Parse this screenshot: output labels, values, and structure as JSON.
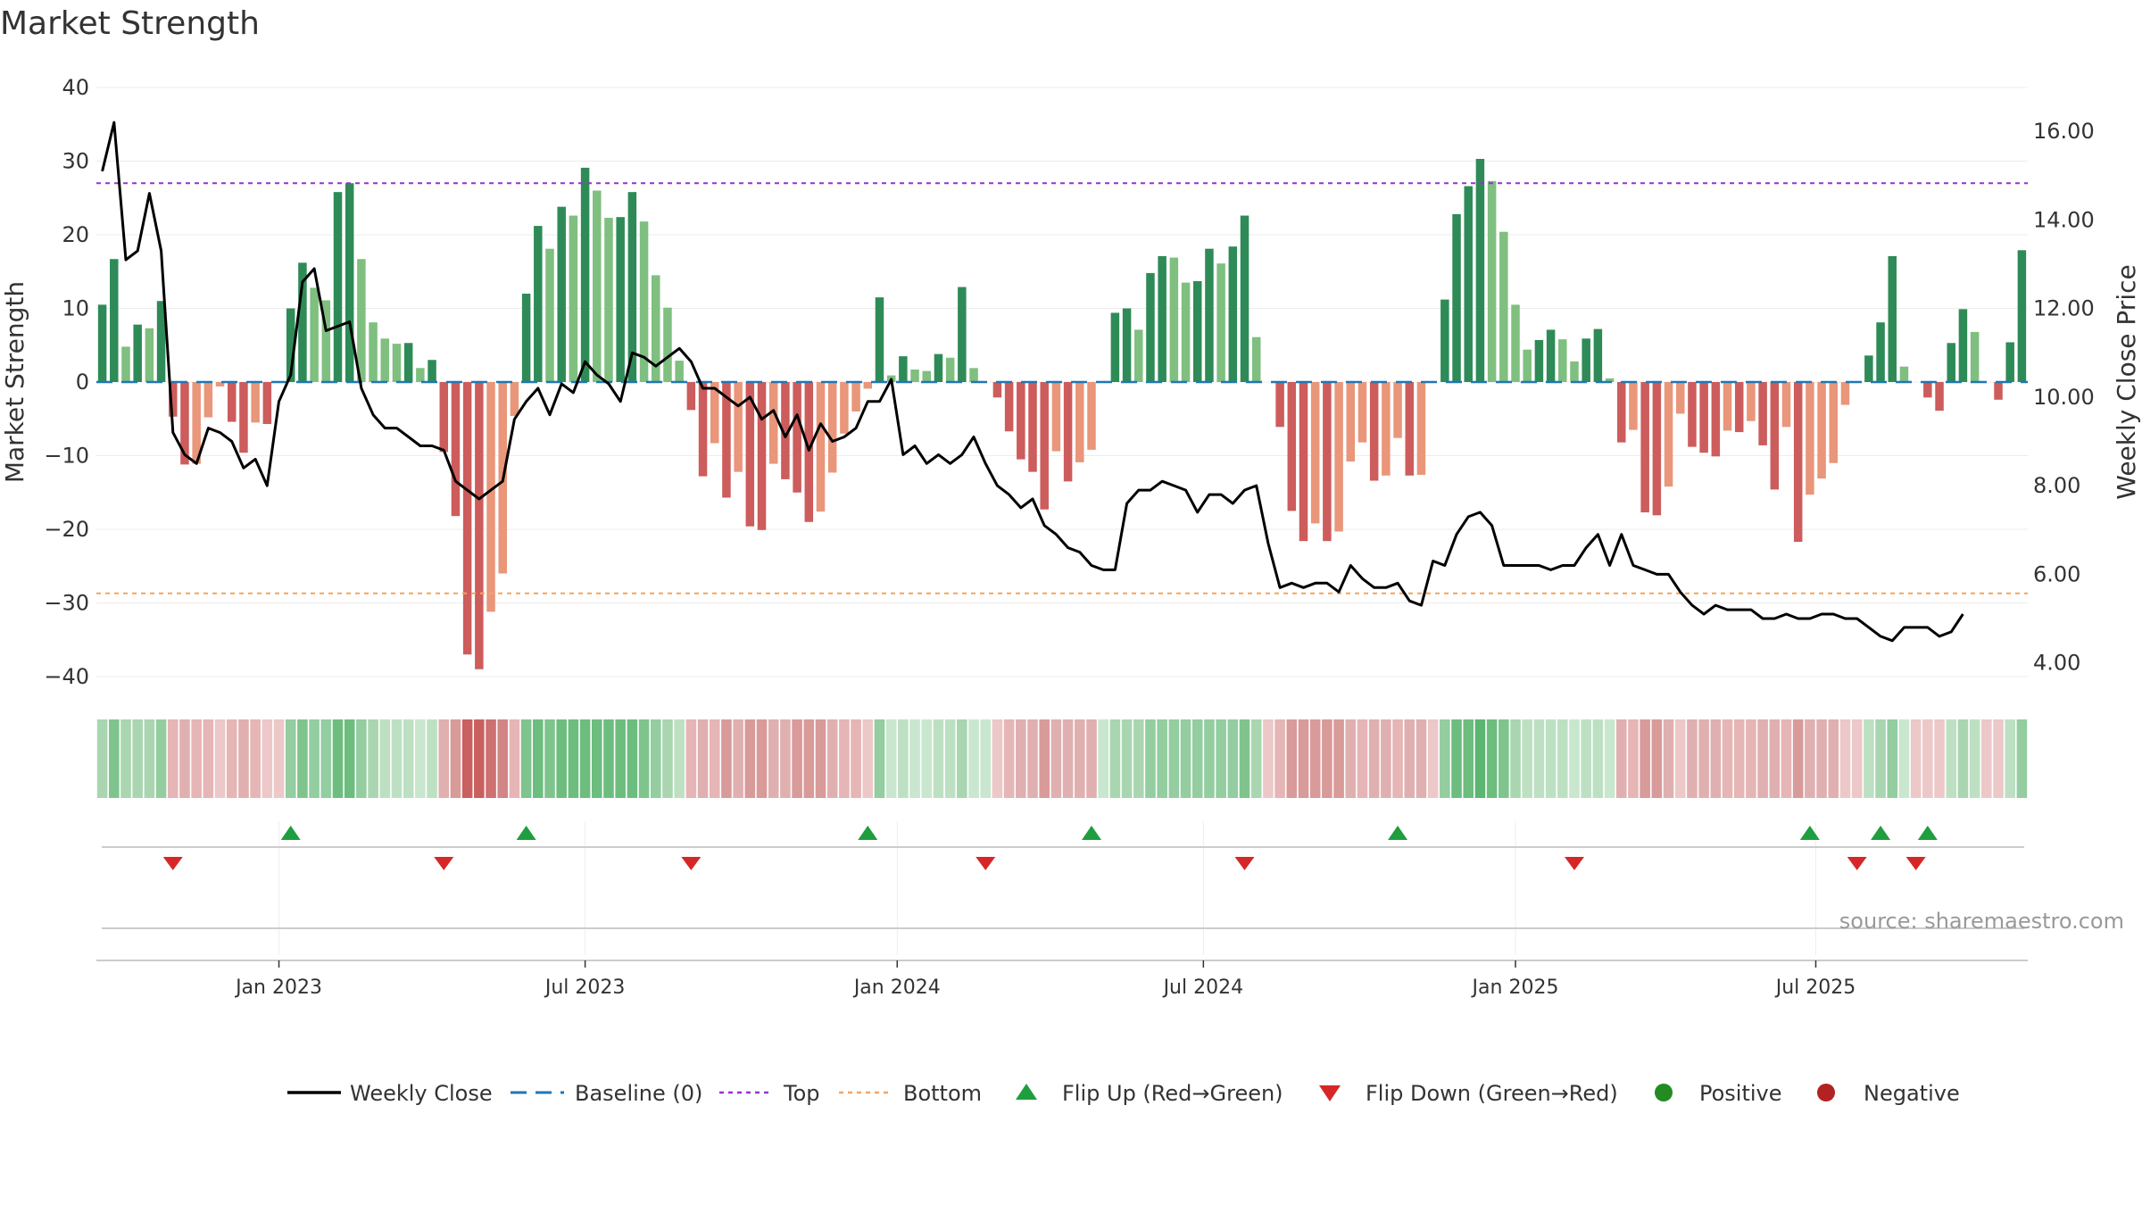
{
  "chart_data": {
    "type": "bar+line",
    "title": "Market Strength",
    "source": "source: sharemaestro.com",
    "y_left_label": "Market Strength",
    "y_right_label": "Weekly Close Price",
    "y_left_ticks": [
      40,
      30,
      20,
      10,
      0,
      -10,
      -20,
      -30,
      -40
    ],
    "y_left_tick_labels": [
      "40",
      "30",
      "20",
      "10",
      "0",
      "−10",
      "−20",
      "−30",
      "−40"
    ],
    "y_left_range": [
      -40,
      40
    ],
    "y_right_ticks": [
      16,
      14,
      12,
      10,
      8,
      6,
      4
    ],
    "y_right_tick_labels": [
      "16.00",
      "14.00",
      "12.00",
      "10.00",
      "8.00",
      "6.00",
      "4.00"
    ],
    "y_right_range": [
      3.65,
      16.95
    ],
    "top_level": 27,
    "bottom_level": -28.7,
    "x_date_labels": [
      "Jan 2023",
      "Jul 2023",
      "Jan 2024",
      "Jul 2024",
      "Jan 2025",
      "Jul 2025"
    ],
    "x_date_positions_week": [
      15,
      41,
      67.5,
      93.5,
      120,
      145.5
    ],
    "strength_values": [
      10.5,
      16.7,
      4.8,
      7.8,
      7.3,
      11,
      -4.7,
      -11.2,
      -11.1,
      -4.8,
      -0.6,
      -5.4,
      -9.6,
      -5.5,
      -5.7,
      0,
      10,
      16.2,
      12.8,
      11.1,
      25.8,
      27,
      16.7,
      8.1,
      5.9,
      5.2,
      5.3,
      1.9,
      3,
      -9.5,
      -18.2,
      -37,
      -39,
      -31.2,
      -26,
      -4.6,
      12,
      21.2,
      18.1,
      23.8,
      22.6,
      29.1,
      26,
      22.3,
      22.4,
      25.8,
      21.8,
      14.5,
      10.1,
      2.9,
      -3.8,
      -12.8,
      -8.3,
      -15.7,
      -12.2,
      -19.6,
      -20.1,
      -11.1,
      -13.2,
      -15,
      -19,
      -17.6,
      -12.3,
      -7,
      -4,
      -0.9,
      11.5,
      0.9,
      3.5,
      1.7,
      1.5,
      3.8,
      3.3,
      12.9,
      1.9,
      0,
      -2.1,
      -6.7,
      -10.5,
      -12.2,
      -17.3,
      -9.4,
      -13.5,
      -10.9,
      -9.2,
      0,
      9.4,
      10,
      7.1,
      14.8,
      17.1,
      16.9,
      13.5,
      13.7,
      18.1,
      16.1,
      18.4,
      22.6,
      6.1,
      0,
      -6.1,
      -17.5,
      -21.6,
      -19.2,
      -21.6,
      -20.3,
      -10.8,
      -8.2,
      -13.4,
      -12.7,
      -7.6,
      -12.7,
      -12.6,
      0,
      11.2,
      22.8,
      26.6,
      30.3,
      27.3,
      20.4,
      10.5,
      4.4,
      5.7,
      7.1,
      5.8,
      2.8,
      5.9,
      7.2,
      0.5,
      -8.2,
      -6.5,
      -17.7,
      -18.1,
      -14.2,
      -4.3,
      -8.8,
      -9.6,
      -10.1,
      -6.6,
      -6.8,
      -5.3,
      -8.6,
      -14.6,
      -6.1,
      -21.7,
      -15.3,
      -13.1,
      -11,
      -3.1,
      0,
      3.6,
      8.1,
      17.1,
      2.1,
      0,
      -2.1,
      -3.9,
      5.3,
      9.9,
      6.8,
      0,
      -2.4,
      5.4,
      17.9
    ],
    "close_values": [
      15.1,
      16.2,
      13.1,
      13.3,
      14.6,
      13.3,
      9.2,
      8.7,
      8.5,
      9.3,
      9.2,
      9,
      8.4,
      8.6,
      8,
      9.9,
      10.5,
      12.6,
      12.9,
      11.5,
      11.6,
      11.7,
      10.2,
      9.6,
      9.3,
      9.3,
      9.1,
      8.9,
      8.9,
      8.8,
      8.1,
      7.9,
      7.7,
      7.9,
      8.1,
      9.5,
      9.9,
      10.2,
      9.6,
      10.3,
      10.1,
      10.8,
      10.5,
      10.3,
      9.9,
      11,
      10.9,
      10.7,
      10.9,
      11.1,
      10.8,
      10.2,
      10.2,
      10,
      9.8,
      10,
      9.5,
      9.7,
      9.1,
      9.6,
      8.8,
      9.4,
      9,
      9.1,
      9.3,
      9.9,
      9.9,
      10.4,
      8.7,
      8.9,
      8.5,
      8.7,
      8.5,
      8.7,
      9.1,
      8.5,
      8,
      7.8,
      7.5,
      7.7,
      7.1,
      6.9,
      6.6,
      6.5,
      6.2,
      6.1,
      6.1,
      7.6,
      7.9,
      7.9,
      8.1,
      8,
      7.9,
      7.4,
      7.8,
      7.8,
      7.6,
      7.9,
      8,
      6.7,
      5.7,
      5.8,
      5.7,
      5.8,
      5.8,
      5.6,
      6.2,
      5.9,
      5.7,
      5.7,
      5.8,
      5.4,
      5.3,
      6.3,
      6.2,
      6.9,
      7.3,
      7.4,
      7.1,
      6.2,
      6.2,
      6.2,
      6.2,
      6.1,
      6.2,
      6.2,
      6.6,
      6.9,
      6.2,
      6.9,
      6.2,
      6.1,
      6,
      6,
      5.6,
      5.3,
      5.1,
      5.3,
      5.2,
      5.2,
      5.2,
      5,
      5,
      5.1,
      5,
      5,
      5.1,
      5.1,
      5,
      5,
      4.8,
      4.6,
      4.5,
      4.8,
      4.8,
      4.8,
      4.6,
      4.7,
      5.1
    ],
    "heat_colors": [
      "#a9d6b0",
      "#7fc48d",
      "#a9d6b0",
      "#a9d6b0",
      "#a9d6b0",
      "#93cda0",
      "#e6b5b5",
      "#e0b0b0",
      "#e6b5b5",
      "#e6b5b5",
      "#ecc8c8",
      "#e6b5b5",
      "#e0b0b0",
      "#e6b5b5",
      "#ecc8c8",
      "#ecc8c8",
      "#93cda0",
      "#7fc48d",
      "#93cda0",
      "#93cda0",
      "#6dbd7f",
      "#6dbd7f",
      "#93cda0",
      "#a9d6b0",
      "#bde0c3",
      "#bde0c3",
      "#bde0c3",
      "#c9e6ce",
      "#bde0c3",
      "#e0b0b0",
      "#d99a9a",
      "#c96060",
      "#c96060",
      "#cd7070",
      "#d38585",
      "#e6b5b5",
      "#7fc48d",
      "#6dbd7f",
      "#7fc48d",
      "#6dbd7f",
      "#6dbd7f",
      "#6dbd7f",
      "#6dbd7f",
      "#6dbd7f",
      "#6dbd7f",
      "#6dbd7f",
      "#7fc48d",
      "#93cda0",
      "#a9d6b0",
      "#bde0c3",
      "#e6b5b5",
      "#e0b0b0",
      "#e6b5b5",
      "#d99a9a",
      "#e0b0b0",
      "#d99a9a",
      "#d99a9a",
      "#e0b0b0",
      "#e0b0b0",
      "#d99a9a",
      "#d99a9a",
      "#d99a9a",
      "#e0b0b0",
      "#e6b5b5",
      "#e6b5b5",
      "#ecc8c8",
      "#93cda0",
      "#c9e6ce",
      "#bde0c3",
      "#c9e6ce",
      "#c9e6ce",
      "#bde0c3",
      "#bde0c3",
      "#a9d6b0",
      "#c9e6ce",
      "#c9e6ce",
      "#ecc8c8",
      "#e6b5b5",
      "#e0b0b0",
      "#e0b0b0",
      "#d99a9a",
      "#e0b0b0",
      "#e0b0b0",
      "#e0b0b0",
      "#e0b0b0",
      "#c9e6ce",
      "#a9d6b0",
      "#a9d6b0",
      "#a9d6b0",
      "#93cda0",
      "#93cda0",
      "#93cda0",
      "#93cda0",
      "#93cda0",
      "#93cda0",
      "#93cda0",
      "#93cda0",
      "#7fc48d",
      "#a9d6b0",
      "#ecc8c8",
      "#e6b5b5",
      "#d99a9a",
      "#d99a9a",
      "#d99a9a",
      "#d99a9a",
      "#d99a9a",
      "#e0b0b0",
      "#e6b5b5",
      "#e0b0b0",
      "#e0b0b0",
      "#e6b5b5",
      "#e0b0b0",
      "#e0b0b0",
      "#ecc8c8",
      "#93cda0",
      "#6dbd7f",
      "#6dbd7f",
      "#5cb570",
      "#6dbd7f",
      "#7fc48d",
      "#a9d6b0",
      "#bde0c3",
      "#bde0c3",
      "#bde0c3",
      "#bde0c3",
      "#c9e6ce",
      "#bde0c3",
      "#bde0c3",
      "#c9e6ce",
      "#e0b0b0",
      "#e6b5b5",
      "#d99a9a",
      "#d99a9a",
      "#e0b0b0",
      "#ecc8c8",
      "#e0b0b0",
      "#e0b0b0",
      "#e0b0b0",
      "#e6b5b5",
      "#e6b5b5",
      "#e6b5b5",
      "#e0b0b0",
      "#e0b0b0",
      "#e6b5b5",
      "#d99a9a",
      "#e0b0b0",
      "#e0b0b0",
      "#e0b0b0",
      "#ecc8c8",
      "#ecc8c8",
      "#bde0c3",
      "#a9d6b0",
      "#93cda0",
      "#c9e6ce",
      "#ecc8c8",
      "#ecc8c8",
      "#ecc8c8",
      "#bde0c3",
      "#a9d6b0",
      "#bde0c3",
      "#ecc8c8",
      "#ecc8c8",
      "#bde0c3",
      "#93cda0"
    ],
    "flip_up_weeks": [
      16,
      36,
      65,
      84,
      110,
      145,
      151,
      155
    ],
    "flip_down_weeks": [
      6,
      29,
      50,
      75,
      97,
      125,
      149,
      154
    ],
    "bar_colors": {
      "strong_positive": "#2e8b57",
      "weak_positive": "#7fbf7f",
      "strong_negative": "#cd5c5c",
      "weak_negative": "#e9967a"
    },
    "line_colors": {
      "close": "#000000",
      "baseline": "#1f77b4",
      "top": "#9932cc",
      "bottom": "#f4a460",
      "flip_up": "#1e9e3e",
      "flip_down": "#d62728",
      "positive": "#228b22",
      "negative": "#b22222"
    },
    "legend": [
      {
        "label": "Weekly Close",
        "kind": "line"
      },
      {
        "label": "Baseline (0)",
        "kind": "dash"
      },
      {
        "label": "Top",
        "kind": "dot-purple"
      },
      {
        "label": "Bottom",
        "kind": "dot-orange"
      },
      {
        "label": "Flip Up (Red→Green)",
        "kind": "tri-up"
      },
      {
        "label": "Flip Down (Green→Red)",
        "kind": "tri-down"
      },
      {
        "label": "Positive",
        "kind": "dot-green"
      },
      {
        "label": "Negative",
        "kind": "dot-red"
      }
    ]
  }
}
